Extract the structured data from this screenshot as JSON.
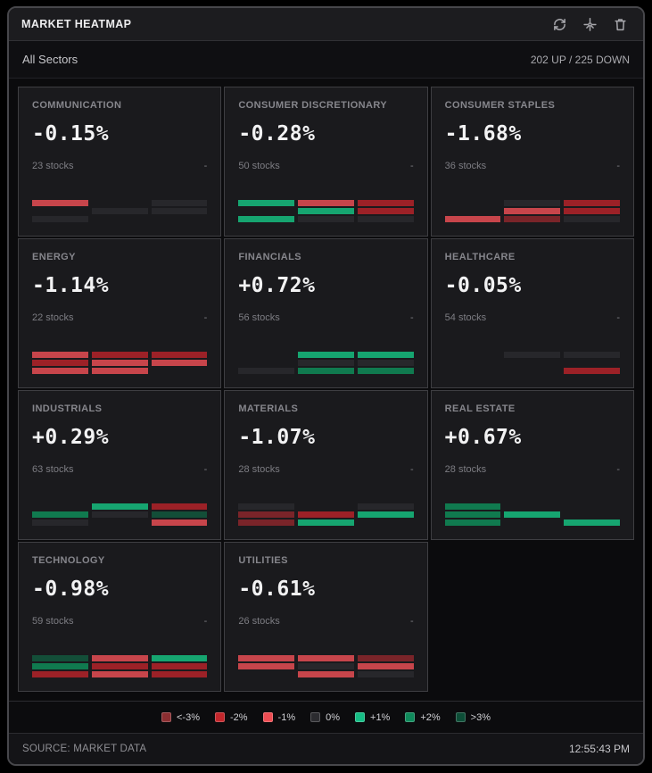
{
  "header": {
    "title": "MARKET HEATMAP",
    "icons": [
      "refresh-icon",
      "sparkle-icon",
      "trash-icon"
    ]
  },
  "subheader": {
    "filter_label": "All Sectors",
    "breadth": "202 UP / 225 DOWN"
  },
  "cell_colors": {
    "n3": "#7a2429",
    "n2": "#9c2127",
    "n1": "#c7454b",
    "z": "#27272b",
    "p1": "#16a570",
    "p2": "#107a4f",
    "p3": "#134e38"
  },
  "sectors": [
    {
      "name": "COMMUNICATION",
      "change": "-0.15%",
      "stocks": "23 stocks",
      "dash": "-",
      "cells": [
        "n1",
        "",
        "z",
        "",
        "z",
        "z",
        "z",
        "",
        ""
      ]
    },
    {
      "name": "CONSUMER DISCRETIONARY",
      "change": "-0.28%",
      "stocks": "50 stocks",
      "dash": "-",
      "cells": [
        "p1",
        "n1",
        "n2",
        "",
        "p1",
        "n2",
        "p1",
        "z",
        "z"
      ]
    },
    {
      "name": "CONSUMER STAPLES",
      "change": "-1.68%",
      "stocks": "36 stocks",
      "dash": "-",
      "cells": [
        "",
        "z",
        "n2",
        "",
        "n1",
        "n2",
        "n1",
        "n3",
        "z"
      ]
    },
    {
      "name": "ENERGY",
      "change": "-1.14%",
      "stocks": "22 stocks",
      "dash": "-",
      "cells": [
        "n1",
        "n2",
        "n2",
        "n2",
        "n1",
        "n1",
        "n1",
        "n1",
        ""
      ]
    },
    {
      "name": "FINANCIALS",
      "change": "+0.72%",
      "stocks": "56 stocks",
      "dash": "-",
      "cells": [
        "",
        "p1",
        "p1",
        "",
        "z",
        "z",
        "z",
        "p2",
        "p2"
      ]
    },
    {
      "name": "HEALTHCARE",
      "change": "-0.05%",
      "stocks": "54 stocks",
      "dash": "-",
      "cells": [
        "",
        "z",
        "z",
        "",
        "",
        "",
        "",
        "",
        "n2"
      ]
    },
    {
      "name": "INDUSTRIALS",
      "change": "+0.29%",
      "stocks": "63 stocks",
      "dash": "-",
      "cells": [
        "",
        "p1",
        "n2",
        "p2",
        "z",
        "p3",
        "z",
        "",
        "n1"
      ]
    },
    {
      "name": "MATERIALS",
      "change": "-1.07%",
      "stocks": "28 stocks",
      "dash": "-",
      "cells": [
        "z",
        "",
        "z",
        "n3",
        "n2",
        "p1",
        "n3",
        "p1",
        ""
      ]
    },
    {
      "name": "REAL ESTATE",
      "change": "+0.67%",
      "stocks": "28 stocks",
      "dash": "-",
      "cells": [
        "p2",
        "",
        "",
        "p2",
        "p1",
        "",
        "p2",
        "",
        "p1"
      ]
    },
    {
      "name": "TECHNOLOGY",
      "change": "-0.98%",
      "stocks": "59 stocks",
      "dash": "-",
      "cells": [
        "p3",
        "n1",
        "p1",
        "p2",
        "n2",
        "n2",
        "n2",
        "n1",
        "n2"
      ]
    },
    {
      "name": "UTILITIES",
      "change": "-0.61%",
      "stocks": "26 stocks",
      "dash": "-",
      "cells": [
        "n1",
        "n1",
        "n3",
        "n1",
        "z",
        "n1",
        "",
        "n1",
        "z"
      ]
    }
  ],
  "legend": [
    {
      "label": "<-3%",
      "color": "#8b2e31"
    },
    {
      "label": "-2%",
      "color": "#c2262b"
    },
    {
      "label": "-1%",
      "color": "#ee4d53"
    },
    {
      "label": "0%",
      "color": "#2b2b2f"
    },
    {
      "label": "+1%",
      "color": "#16bd85"
    },
    {
      "label": "+2%",
      "color": "#0f8a5b"
    },
    {
      "label": ">3%",
      "color": "#0d4e37"
    }
  ],
  "footer": {
    "source": "SOURCE: MARKET DATA",
    "time": "12:55:43 PM"
  }
}
